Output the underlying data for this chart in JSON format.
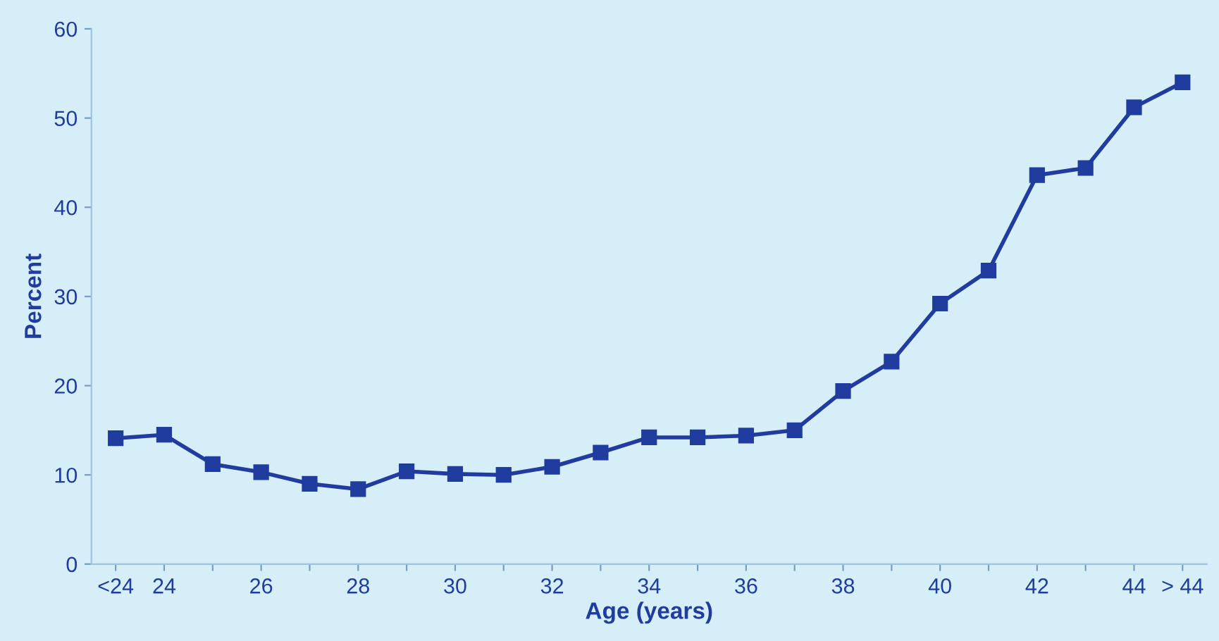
{
  "chart_data": {
    "type": "line",
    "xlabel": "Age (years)",
    "ylabel": "Percent",
    "categories": [
      "<24",
      "24",
      null,
      "26",
      null,
      "28",
      null,
      "30",
      null,
      "32",
      null,
      "34",
      null,
      "36",
      null,
      "38",
      null,
      "40",
      null,
      "42",
      null,
      "44",
      "> 44"
    ],
    "series": [
      {
        "color": "#1f3c9e",
        "values": [
          14.1,
          14.5,
          11.2,
          10.3,
          9.0,
          8.4,
          10.4,
          10.1,
          10.0,
          10.9,
          12.5,
          14.2,
          14.2,
          14.4,
          15.0,
          19.4,
          22.7,
          29.2,
          32.9,
          43.6,
          44.4,
          51.2,
          54.0
        ]
      }
    ],
    "ylim": [
      0,
      60
    ],
    "yticks": [
      0,
      10,
      20,
      30,
      40,
      50,
      60
    ],
    "grid": false,
    "legend": false,
    "marker": "square",
    "line_style": "solid"
  }
}
